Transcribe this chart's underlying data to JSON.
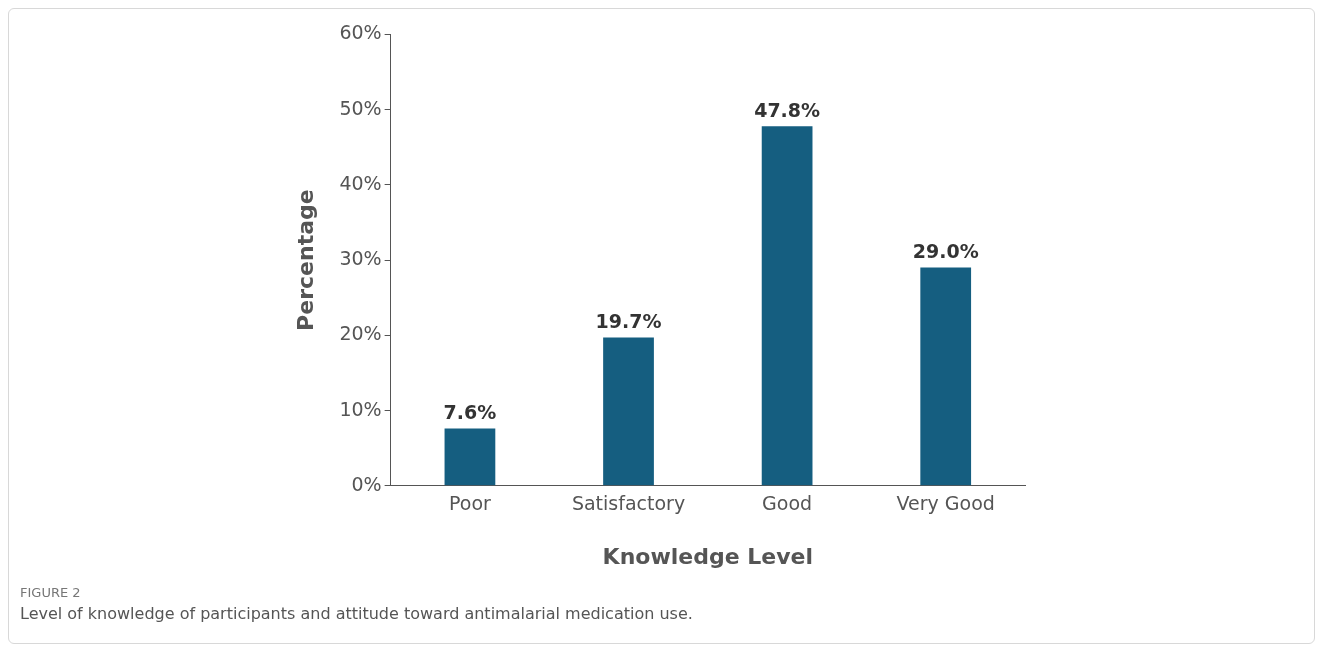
{
  "chart_data": {
    "type": "bar",
    "xlabel": "Knowledge Level",
    "ylabel": "Percentage",
    "categories": [
      "Poor",
      "Satisfactory",
      "Good",
      "Very Good"
    ],
    "values": [
      7.6,
      19.7,
      47.8,
      29.0
    ],
    "value_labels": [
      "7.6%",
      "19.7%",
      "47.8%",
      "29.0%"
    ],
    "color": "#155e80",
    "ylim": [
      0,
      60
    ],
    "yticks": [
      {
        "value": 0,
        "label": "0%"
      },
      {
        "value": 10,
        "label": "10%"
      },
      {
        "value": 20,
        "label": "20%"
      },
      {
        "value": 30,
        "label": "30%"
      },
      {
        "value": 40,
        "label": "40%"
      },
      {
        "value": 50,
        "label": "50%"
      },
      {
        "value": 60,
        "label": "60%"
      }
    ],
    "grid": false,
    "legend": false,
    "annotations": [
      "FIGURE 2",
      "Level of knowledge of participants and attitude toward antimalarial medication use."
    ]
  }
}
